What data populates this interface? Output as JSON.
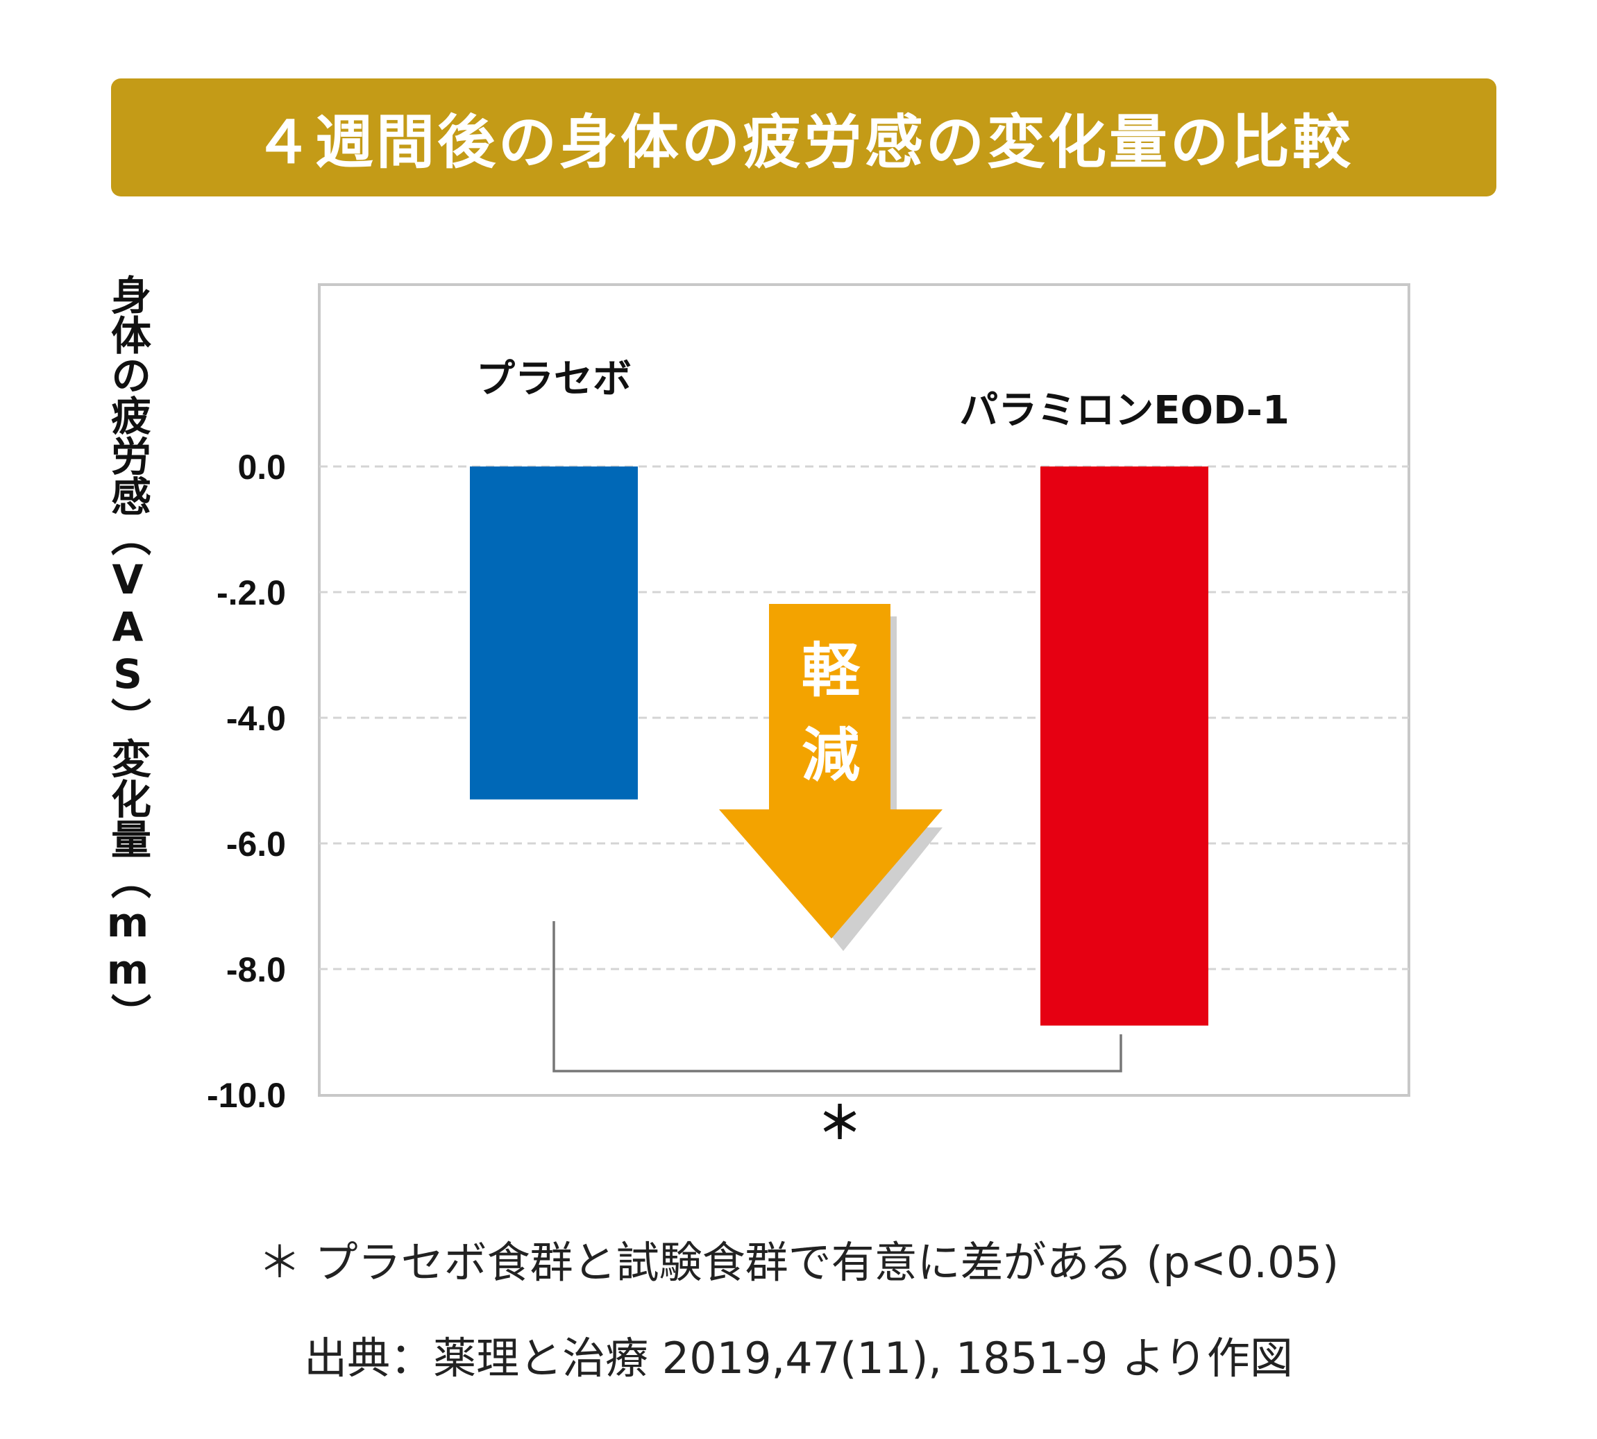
{
  "chart_data": {
    "type": "bar",
    "title": "４週間後の身体の疲労感の変化量の比較",
    "ylabel": "身体の疲労感（VAS）変化量（mm）",
    "xlabel": "",
    "ylim": [
      -10.0,
      0.0
    ],
    "yticks": [
      "0.0",
      "-.2.0",
      "-4.0",
      "-6.0",
      "-8.0",
      "-10.0"
    ],
    "grid": true,
    "categories": [
      "プラセボ",
      "パラミロンEOD-1"
    ],
    "values": [
      -5.3,
      -8.9
    ],
    "colors": [
      "#0068b7",
      "#e60012"
    ],
    "arrow_label": "軽減",
    "arrow_color": "#f3a300",
    "significance_mark": "＊"
  },
  "footnote": "＊ プラセボ食群と試験食群で有意に差がある (p<0.05)",
  "source": "出典：薬理と治療 2019,47(11), 1851-9 より作図"
}
